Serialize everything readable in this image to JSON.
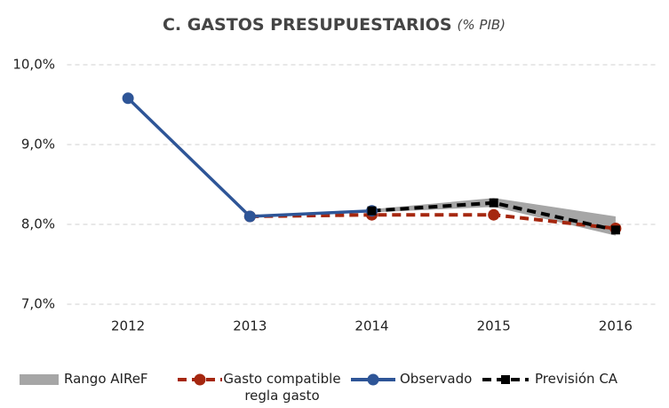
{
  "chart_data": {
    "type": "line",
    "title": "C. GASTOS PRESUPUESTARIOS",
    "title_unit": "(% PIB)",
    "categories": [
      "2012",
      "2013",
      "2014",
      "2015",
      "2016"
    ],
    "ylim": [
      7.0,
      10.0
    ],
    "yticks": [
      {
        "value": 7.0,
        "label": "7,0%"
      },
      {
        "value": 8.0,
        "label": "8,0%"
      },
      {
        "value": 9.0,
        "label": "9,0%"
      },
      {
        "value": 10.0,
        "label": "10,0%"
      }
    ],
    "grid": true,
    "range": {
      "name": "Rango AIReF",
      "color": "#a6a6a6",
      "low": [
        null,
        null,
        8.15,
        8.22,
        7.86
      ],
      "high": [
        null,
        null,
        8.19,
        8.33,
        8.1
      ]
    },
    "series": [
      {
        "name": "Gasto compatible regla gasto",
        "color": "#a5270f",
        "style": "dashed",
        "marker": "circle",
        "values": [
          null,
          8.1,
          8.12,
          8.12,
          7.95
        ]
      },
      {
        "name": "Observado",
        "color": "#2e5597",
        "style": "solid",
        "marker": "circle",
        "values": [
          9.58,
          8.1,
          8.17,
          null,
          null
        ]
      },
      {
        "name": "Previsión CA",
        "color": "#000000",
        "style": "dashed",
        "marker": "square",
        "values": [
          null,
          null,
          8.17,
          8.27,
          7.93
        ]
      }
    ]
  }
}
